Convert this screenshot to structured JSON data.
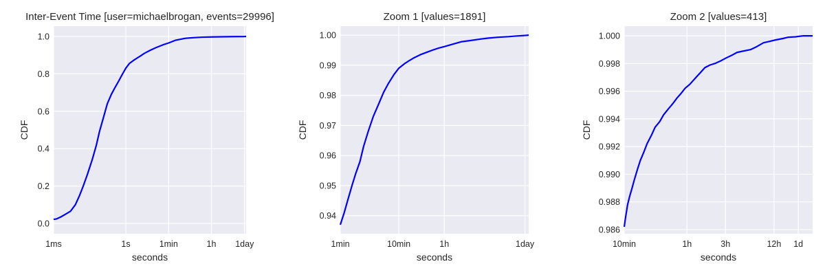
{
  "colors": {
    "background": "#eaeaf2",
    "grid": "#ffffff",
    "line": "#0000ff",
    "text": "#262626"
  },
  "chart_data": [
    {
      "type": "line",
      "title": "Inter-Event Time [user=michaelbrogan, events=29996]",
      "xlabel": "seconds",
      "ylabel": "CDF",
      "xscale": "log",
      "xlim": [
        0.001,
        100000
      ],
      "ylim": [
        -0.055,
        1.055
      ],
      "grid": true,
      "xticks": [
        {
          "value": 0.001,
          "label": "1ms"
        },
        {
          "value": 1,
          "label": "1s"
        },
        {
          "value": 60,
          "label": "1min"
        },
        {
          "value": 3600,
          "label": "1h"
        },
        {
          "value": 86400,
          "label": "1day"
        }
      ],
      "yticks": [
        {
          "value": 0.0,
          "label": "0.0"
        },
        {
          "value": 0.2,
          "label": "0.2"
        },
        {
          "value": 0.4,
          "label": "0.4"
        },
        {
          "value": 0.6,
          "label": "0.6"
        },
        {
          "value": 0.8,
          "label": "0.8"
        },
        {
          "value": 1.0,
          "label": "1.0"
        }
      ],
      "series": [
        {
          "x": [
            0.001,
            0.0013,
            0.002,
            0.003,
            0.005,
            0.008,
            0.012,
            0.017,
            0.025,
            0.04,
            0.06,
            0.08,
            0.12,
            0.17,
            0.25,
            0.35,
            0.5,
            0.7,
            1,
            1.4,
            2,
            3,
            4,
            6,
            10,
            18,
            35,
            60,
            120,
            300,
            600,
            1500,
            3600,
            10000,
            30000,
            86400,
            100000
          ],
          "y": [
            0.022,
            0.024,
            0.035,
            0.048,
            0.065,
            0.1,
            0.15,
            0.2,
            0.26,
            0.34,
            0.42,
            0.49,
            0.57,
            0.64,
            0.69,
            0.725,
            0.76,
            0.795,
            0.83,
            0.855,
            0.87,
            0.885,
            0.895,
            0.91,
            0.925,
            0.94,
            0.955,
            0.965,
            0.98,
            0.99,
            0.993,
            0.996,
            0.997,
            0.998,
            0.999,
            0.9995,
            1.0
          ]
        }
      ]
    },
    {
      "type": "line",
      "title": "Zoom 1 [values=1891]",
      "xlabel": "seconds",
      "ylabel": "CDF",
      "xscale": "log",
      "xlim": [
        60,
        100000
      ],
      "ylim": [
        0.934,
        1.003
      ],
      "grid": true,
      "xticks": [
        {
          "value": 60,
          "label": "1min"
        },
        {
          "value": 600,
          "label": "10min"
        },
        {
          "value": 3600,
          "label": "1h"
        },
        {
          "value": 86400,
          "label": "1day"
        }
      ],
      "yticks": [
        {
          "value": 0.94,
          "label": "0.94"
        },
        {
          "value": 0.95,
          "label": "0.95"
        },
        {
          "value": 0.96,
          "label": "0.96"
        },
        {
          "value": 0.97,
          "label": "0.97"
        },
        {
          "value": 0.98,
          "label": "0.98"
        },
        {
          "value": 0.99,
          "label": "0.99"
        },
        {
          "value": 1.0,
          "label": "1.00"
        }
      ],
      "series": [
        {
          "x": [
            60,
            70,
            80,
            95,
            110,
            130,
            150,
            180,
            220,
            270,
            330,
            400,
            500,
            600,
            750,
            900,
            1100,
            1400,
            1800,
            2400,
            3000,
            3600,
            5000,
            7000,
            10000,
            15000,
            20000,
            30000,
            45000,
            60000,
            86400,
            100000
          ],
          "y": [
            0.937,
            0.941,
            0.945,
            0.95,
            0.954,
            0.958,
            0.963,
            0.968,
            0.973,
            0.977,
            0.981,
            0.984,
            0.987,
            0.989,
            0.9905,
            0.9915,
            0.9925,
            0.9935,
            0.9943,
            0.9952,
            0.9958,
            0.9962,
            0.997,
            0.9978,
            0.9982,
            0.9987,
            0.999,
            0.9993,
            0.9995,
            0.9997,
            0.9999,
            1.0
          ]
        }
      ]
    },
    {
      "type": "line",
      "title": "Zoom 2 [values=413]",
      "xlabel": "seconds",
      "ylabel": "CDF",
      "xscale": "log",
      "xlim": [
        600,
        130000
      ],
      "ylim": [
        0.9857,
        1.0007
      ],
      "grid": true,
      "xticks": [
        {
          "value": 600,
          "label": "10min"
        },
        {
          "value": 3600,
          "label": "1h"
        },
        {
          "value": 10800,
          "label": "3h"
        },
        {
          "value": 43200,
          "label": "12h"
        },
        {
          "value": 86400,
          "label": "1d"
        }
      ],
      "yticks": [
        {
          "value": 0.986,
          "label": "0.986"
        },
        {
          "value": 0.988,
          "label": "0.988"
        },
        {
          "value": 0.99,
          "label": "0.990"
        },
        {
          "value": 0.992,
          "label": "0.992"
        },
        {
          "value": 0.994,
          "label": "0.994"
        },
        {
          "value": 0.996,
          "label": "0.996"
        },
        {
          "value": 0.998,
          "label": "0.998"
        },
        {
          "value": 1.0,
          "label": "1.000"
        }
      ],
      "series": [
        {
          "x": [
            600,
            620,
            660,
            700,
            750,
            800,
            880,
            950,
            1050,
            1150,
            1300,
            1450,
            1650,
            1850,
            2100,
            2400,
            2700,
            3000,
            3400,
            3900,
            4500,
            5200,
            6000,
            7000,
            8000,
            9500,
            11000,
            13000,
            15000,
            18000,
            22000,
            26000,
            32000,
            38000,
            45000,
            55000,
            65000,
            80000,
            100000,
            115000,
            130000
          ],
          "y": [
            0.9862,
            0.9868,
            0.9878,
            0.9884,
            0.989,
            0.9896,
            0.9904,
            0.991,
            0.9916,
            0.9922,
            0.9928,
            0.9934,
            0.9938,
            0.9943,
            0.9947,
            0.9951,
            0.9955,
            0.9958,
            0.9962,
            0.9965,
            0.9969,
            0.9973,
            0.9977,
            0.9979,
            0.998,
            0.9982,
            0.9984,
            0.9986,
            0.9988,
            0.9989,
            0.999,
            0.9992,
            0.9995,
            0.9996,
            0.9997,
            0.9998,
            0.9999,
            0.99993,
            1.0,
            1.0,
            1.0
          ]
        }
      ]
    }
  ]
}
